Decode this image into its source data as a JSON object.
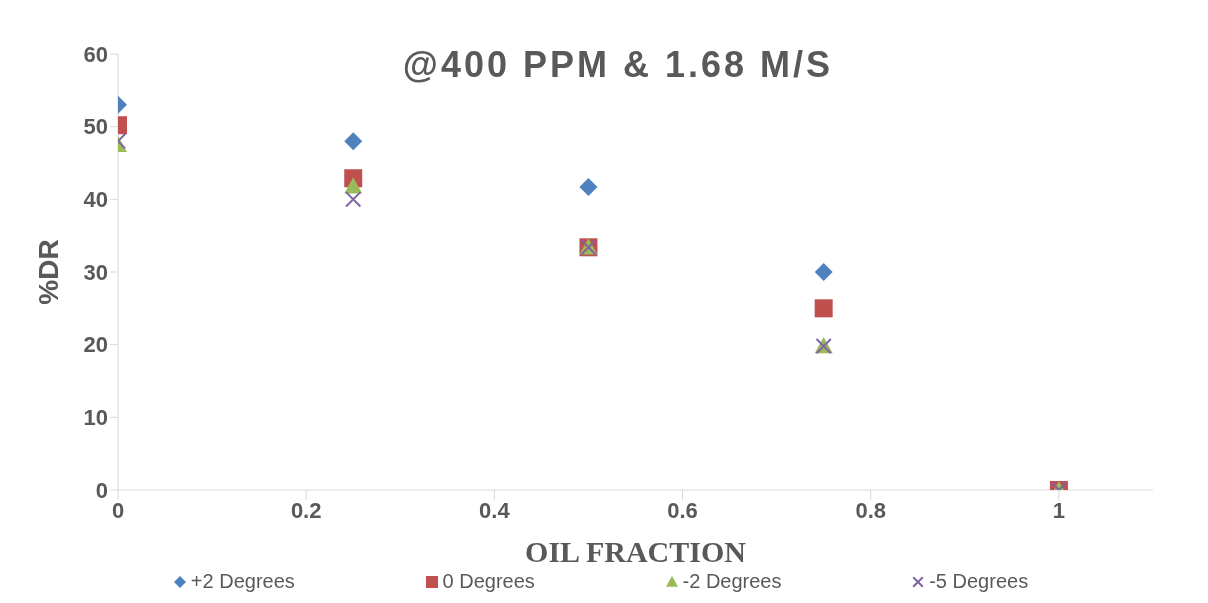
{
  "chart_data": {
    "type": "scatter",
    "title": "@400 PPM & 1.68 M/S",
    "xlabel": "OIL FRACTION",
    "ylabel": "%DR",
    "x": [
      0,
      0.25,
      0.5,
      0.75,
      1
    ],
    "series": [
      {
        "name": "+2 Degrees",
        "color": "#4f81bd",
        "marker": "diamond",
        "values": [
          53,
          48,
          41.7,
          30,
          null
        ]
      },
      {
        "name": "0 Degrees",
        "color": "#c0504d",
        "marker": "square",
        "values": [
          50.2,
          42.9,
          33.4,
          25,
          0
        ]
      },
      {
        "name": "-2 Degrees",
        "color": "#9bbb59",
        "marker": "triangle",
        "values": [
          47.5,
          41.8,
          33.4,
          19.8,
          0
        ]
      },
      {
        "name": "-5 Degrees",
        "color": "#8064a2",
        "marker": "cross",
        "values": [
          48,
          40,
          33.4,
          19.8,
          0
        ]
      }
    ],
    "xlim": [
      0,
      1.1
    ],
    "xticks": [
      0,
      0.2,
      0.4,
      0.6,
      0.8,
      1
    ],
    "ylim": [
      0,
      60
    ],
    "yticks": [
      0,
      10,
      20,
      30,
      40,
      50,
      60
    ],
    "grid": false,
    "legend": "bottom"
  }
}
